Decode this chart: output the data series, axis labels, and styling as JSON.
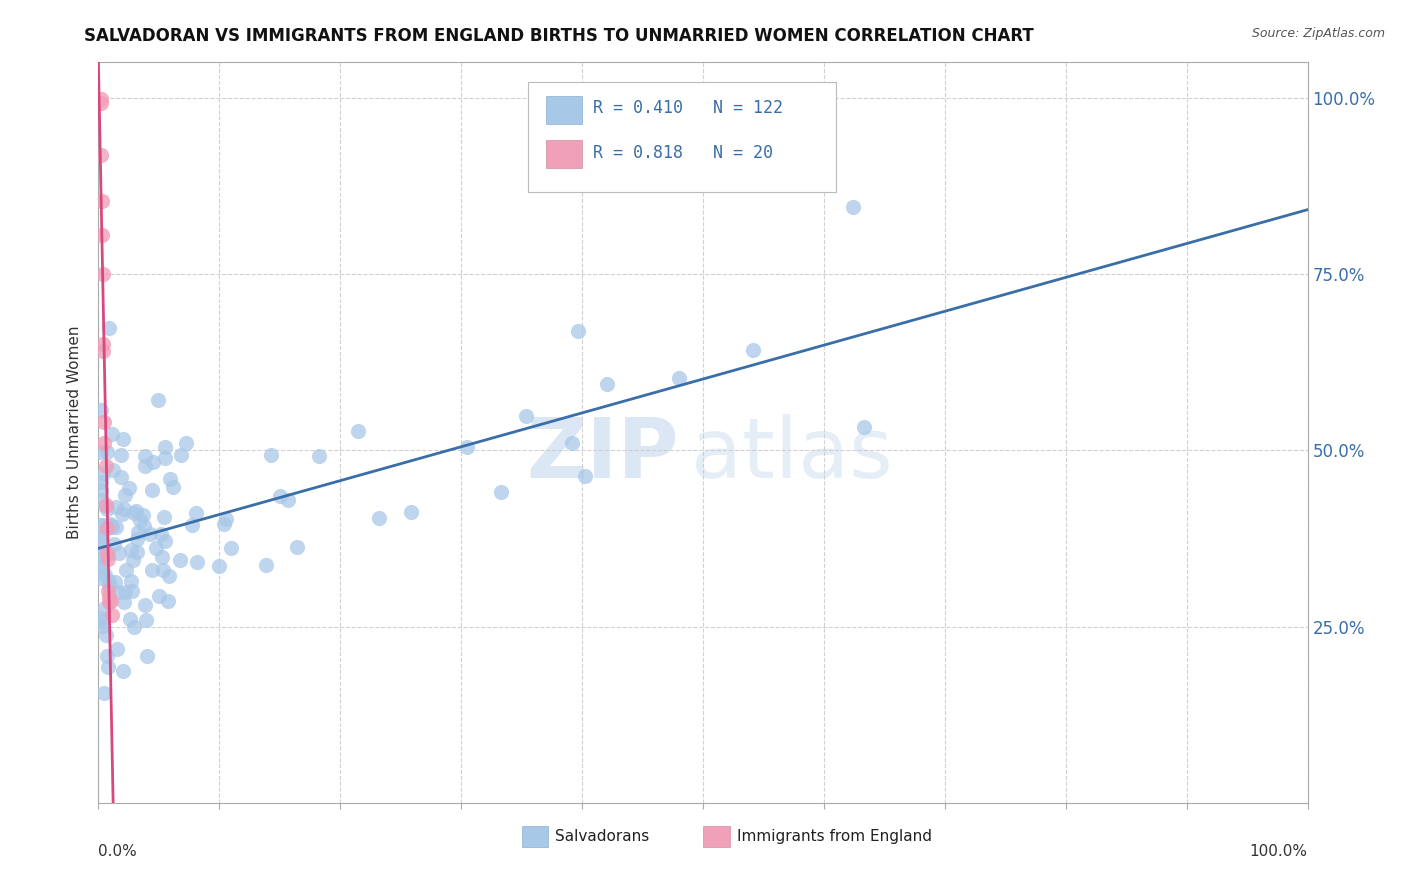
{
  "title": "SALVADORAN VS IMMIGRANTS FROM ENGLAND BIRTHS TO UNMARRIED WOMEN CORRELATION CHART",
  "source": "Source: ZipAtlas.com",
  "ylabel": "Births to Unmarried Women",
  "yticks_right": [
    "25.0%",
    "50.0%",
    "75.0%",
    "100.0%"
  ],
  "legend1_R": "0.410",
  "legend1_N": "122",
  "legend2_R": "0.818",
  "legend2_N": "20",
  "blue_color": "#a8c8e8",
  "pink_color": "#f0a0b8",
  "blue_line_color": "#3a6ea8",
  "pink_line_color": "#d84880",
  "text_color": "#3a6ea8",
  "xmin": 0.0,
  "xmax": 1.0,
  "ymin": 0.0,
  "ymax": 1.05,
  "grid_color": "#cccccc",
  "spine_color": "#aaaaaa"
}
